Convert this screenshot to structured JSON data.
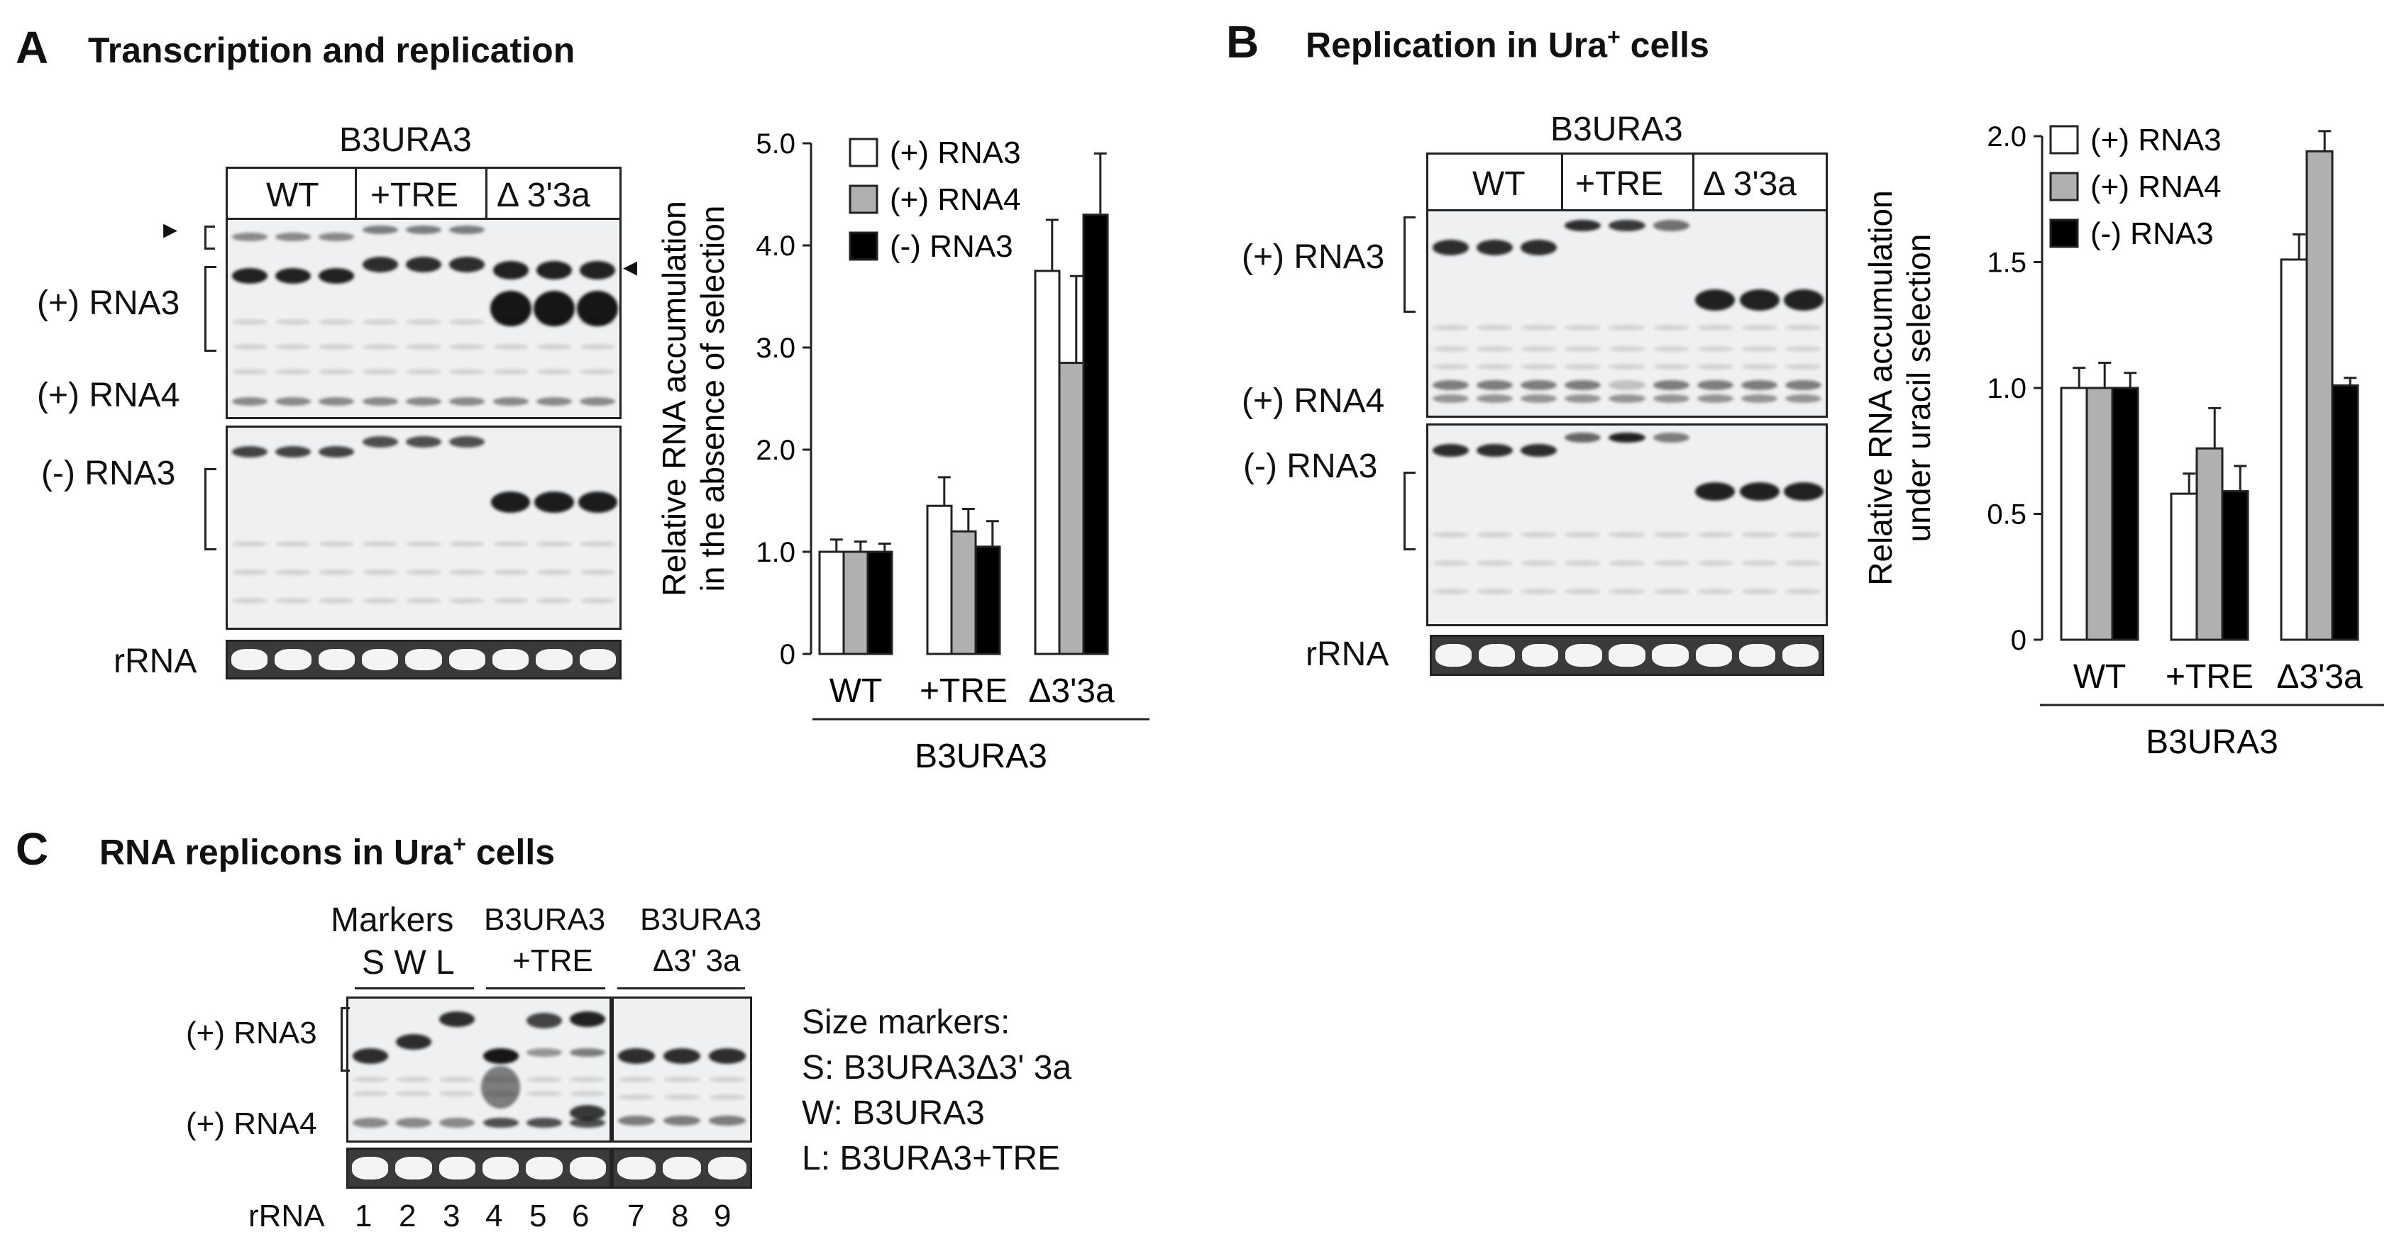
{
  "panelA": {
    "letter": "A",
    "title": "Transcription and replication",
    "construct": "B3URA3",
    "groups": [
      "WT",
      "+TRE",
      "Δ 3'3a"
    ],
    "rows": {
      "plus_rna3": "(+) RNA3",
      "plus_rna4": "(+) RNA4",
      "minus_rna3": "(-) RNA3",
      "rrna": "rRNA"
    },
    "arrow_left": "▸",
    "arrow_right": "◂"
  },
  "panelB": {
    "letter": "B",
    "title": "Replication in Ura",
    "title_sup": "+",
    "title_tail": "cells",
    "construct": "B3URA3",
    "groups": [
      "WT",
      "+TRE",
      "Δ 3'3a"
    ],
    "rows": {
      "plus_rna3": "(+) RNA3",
      "plus_rna4": "(+) RNA4",
      "minus_rna3": "(-) RNA3",
      "rrna": "rRNA"
    }
  },
  "panelC": {
    "letter": "C",
    "title": "RNA replicons in Ura",
    "title_sup": "+",
    "title_tail": "cells",
    "markers_header": "Markers",
    "markers_letters": "S  W  L",
    "group2_line1": "B3URA3",
    "group2_line2": "+TRE",
    "group3_line1": "B3URA3",
    "group3_line2": "Δ3' 3a",
    "rows": {
      "plus_rna3": "(+) RNA3",
      "plus_rna4": "(+) RNA4",
      "rrna": "rRNA"
    },
    "lanes": [
      "1",
      "2",
      "3",
      "4",
      "5",
      "6",
      "7",
      "8",
      "9"
    ],
    "legend_title": "Size markers:",
    "legend": [
      "S:  B3URA3Δ3' 3a",
      "W: B3URA3",
      "L:  B3URA3+TRE"
    ]
  },
  "chart_data": [
    {
      "type": "bar",
      "panel": "A",
      "categories": [
        "WT",
        "+TRE",
        "Δ3'3a"
      ],
      "group_label": "B3URA3",
      "ylabel_line1": "Relative RNA accumulation",
      "ylabel_line2": "in the absence of selection",
      "ylim": [
        0,
        5
      ],
      "yticks": [
        "0",
        "1.0",
        "2.0",
        "3.0",
        "4.0",
        "5.0"
      ],
      "legend_placement": "top-right",
      "series": [
        {
          "name": "(+) RNA3",
          "color": "#ffffff",
          "values": [
            1.0,
            1.45,
            3.75
          ],
          "errors": [
            0.12,
            0.28,
            0.5
          ]
        },
        {
          "name": "(+) RNA4",
          "color": "#b0b0b0",
          "values": [
            1.0,
            1.2,
            2.85
          ],
          "errors": [
            0.1,
            0.22,
            0.85
          ]
        },
        {
          "name": "(-)  RNA3",
          "color": "#000000",
          "values": [
            1.0,
            1.05,
            4.3
          ],
          "errors": [
            0.08,
            0.25,
            0.6
          ]
        }
      ]
    },
    {
      "type": "bar",
      "panel": "B",
      "categories": [
        "WT",
        "+TRE",
        "Δ3'3a"
      ],
      "group_label": "B3URA3",
      "ylabel_line1": "Relative RNA accumulation",
      "ylabel_line2": "under uracil selection",
      "ylim": [
        0,
        2
      ],
      "yticks": [
        "0",
        "0.5",
        "1.0",
        "1.5",
        "2.0"
      ],
      "legend_placement": "top-right",
      "series": [
        {
          "name": "(+) RNA3",
          "color": "#ffffff",
          "values": [
            1.0,
            0.58,
            1.51
          ],
          "errors": [
            0.08,
            0.08,
            0.1
          ]
        },
        {
          "name": "(+) RNA4",
          "color": "#b0b0b0",
          "values": [
            1.0,
            0.76,
            1.94
          ],
          "errors": [
            0.1,
            0.16,
            0.08
          ]
        },
        {
          "name": "(-)  RNA3",
          "color": "#000000",
          "values": [
            1.0,
            0.59,
            1.01
          ],
          "errors": [
            0.06,
            0.1,
            0.03
          ]
        }
      ]
    }
  ]
}
